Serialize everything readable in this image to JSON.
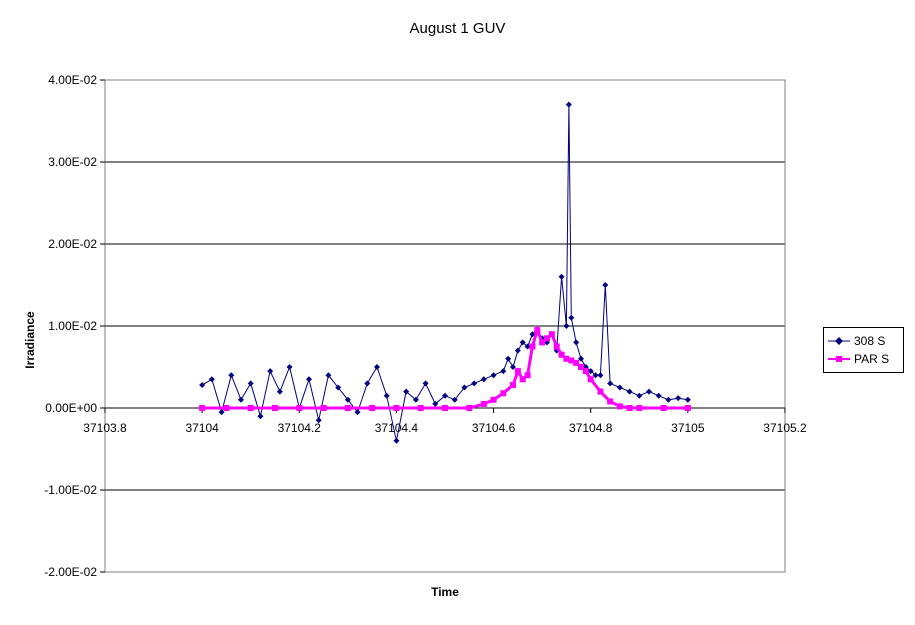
{
  "chart_data": {
    "type": "scatter",
    "title": "August 1 GUV",
    "xlabel": "Time",
    "ylabel": "Irradiance",
    "xlim": [
      37103.8,
      37105.2
    ],
    "ylim": [
      -0.02,
      0.04
    ],
    "x_ticks": [
      "37103.8",
      "37104",
      "37104.2",
      "37104.4",
      "37104.6",
      "37104.8",
      "37105",
      "37105.2"
    ],
    "y_ticks": [
      "-2.00E-02",
      "-1.00E-02",
      "0.00E+00",
      "1.00E-02",
      "2.00E-02",
      "3.00E-02",
      "4.00E-02"
    ],
    "grid": "horizontal",
    "legend_position": "right",
    "series": [
      {
        "name": "308 S",
        "color": "#000080",
        "marker": "diamond",
        "x": [
          37104.0,
          37104.02,
          37104.04,
          37104.06,
          37104.08,
          37104.1,
          37104.12,
          37104.14,
          37104.16,
          37104.18,
          37104.2,
          37104.22,
          37104.24,
          37104.26,
          37104.28,
          37104.3,
          37104.32,
          37104.34,
          37104.36,
          37104.38,
          37104.4,
          37104.42,
          37104.44,
          37104.46,
          37104.48,
          37104.5,
          37104.52,
          37104.54,
          37104.56,
          37104.58,
          37104.6,
          37104.62,
          37104.63,
          37104.64,
          37104.65,
          37104.66,
          37104.67,
          37104.68,
          37104.69,
          37104.7,
          37104.71,
          37104.72,
          37104.73,
          37104.74,
          37104.75,
          37104.755,
          37104.76,
          37104.77,
          37104.78,
          37104.79,
          37104.8,
          37104.81,
          37104.82,
          37104.83,
          37104.84,
          37104.86,
          37104.88,
          37104.9,
          37104.92,
          37104.94,
          37104.96,
          37104.98,
          37105.0
        ],
        "y": [
          0.0028,
          0.0035,
          -0.0005,
          0.004,
          0.001,
          0.003,
          -0.001,
          0.0045,
          0.002,
          0.005,
          0.0,
          0.0035,
          -0.0015,
          0.004,
          0.0025,
          0.001,
          -0.0005,
          0.003,
          0.005,
          0.0015,
          -0.004,
          0.002,
          0.001,
          0.003,
          0.0005,
          0.0015,
          0.001,
          0.0025,
          0.003,
          0.0035,
          0.004,
          0.0045,
          0.006,
          0.005,
          0.007,
          0.008,
          0.0075,
          0.009,
          0.0095,
          0.0085,
          0.008,
          0.009,
          0.007,
          0.016,
          0.01,
          0.037,
          0.011,
          0.008,
          0.006,
          0.005,
          0.0045,
          0.004,
          0.004,
          0.015,
          0.003,
          0.0025,
          0.002,
          0.0015,
          0.002,
          0.0015,
          0.001,
          0.0012,
          0.001
        ]
      },
      {
        "name": "PAR S",
        "color": "#ff00ff",
        "marker": "square",
        "x": [
          37104.0,
          37104.05,
          37104.1,
          37104.15,
          37104.2,
          37104.25,
          37104.3,
          37104.35,
          37104.4,
          37104.45,
          37104.5,
          37104.55,
          37104.58,
          37104.6,
          37104.62,
          37104.64,
          37104.65,
          37104.66,
          37104.67,
          37104.68,
          37104.69,
          37104.7,
          37104.71,
          37104.72,
          37104.73,
          37104.74,
          37104.75,
          37104.76,
          37104.77,
          37104.78,
          37104.79,
          37104.8,
          37104.82,
          37104.84,
          37104.86,
          37104.88,
          37104.9,
          37104.95,
          37105.0
        ],
        "y": [
          0.0,
          0.0,
          0.0,
          0.0,
          0.0,
          0.0,
          0.0,
          0.0,
          0.0,
          0.0,
          0.0,
          0.0,
          0.0005,
          0.001,
          0.0018,
          0.0028,
          0.0045,
          0.0035,
          0.004,
          0.0075,
          0.0095,
          0.008,
          0.0085,
          0.009,
          0.0075,
          0.0065,
          0.006,
          0.0058,
          0.0055,
          0.005,
          0.0045,
          0.0035,
          0.002,
          0.0008,
          0.0002,
          0.0,
          0.0,
          0.0,
          0.0
        ]
      }
    ]
  }
}
